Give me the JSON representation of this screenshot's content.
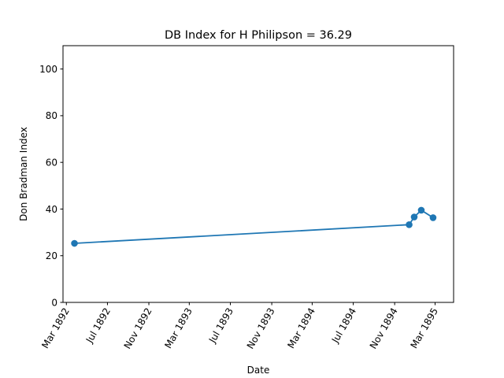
{
  "chart_data": {
    "type": "line",
    "title": "DB Index for H Philipson = 36.29",
    "xlabel": "Date",
    "ylabel": "Don Bradman Index",
    "xlim": [
      "1892-02-20",
      "1895-04-25"
    ],
    "ylim": [
      0,
      110
    ],
    "x_ticks": [
      {
        "date": "1892-03-01",
        "label": "Mar 1892"
      },
      {
        "date": "1892-07-01",
        "label": "Jul 1892"
      },
      {
        "date": "1892-11-01",
        "label": "Nov 1892"
      },
      {
        "date": "1893-03-01",
        "label": "Mar 1893"
      },
      {
        "date": "1893-07-01",
        "label": "Jul 1893"
      },
      {
        "date": "1893-11-01",
        "label": "Nov 1893"
      },
      {
        "date": "1894-03-01",
        "label": "Mar 1894"
      },
      {
        "date": "1894-07-01",
        "label": "Jul 1894"
      },
      {
        "date": "1894-11-01",
        "label": "Nov 1894"
      },
      {
        "date": "1895-03-01",
        "label": "Mar 1895"
      }
    ],
    "y_ticks": [
      0,
      20,
      40,
      60,
      80,
      100
    ],
    "grid": false,
    "series": [
      {
        "color": "#1f77b4",
        "marker": "circle",
        "points": [
          {
            "x": "1892-03-25",
            "y": 25.3
          },
          {
            "x": "1894-12-14",
            "y": 33.3
          },
          {
            "x": "1894-12-29",
            "y": 36.6
          },
          {
            "x": "1895-01-19",
            "y": 39.5
          },
          {
            "x": "1895-02-23",
            "y": 36.3
          }
        ]
      }
    ]
  }
}
